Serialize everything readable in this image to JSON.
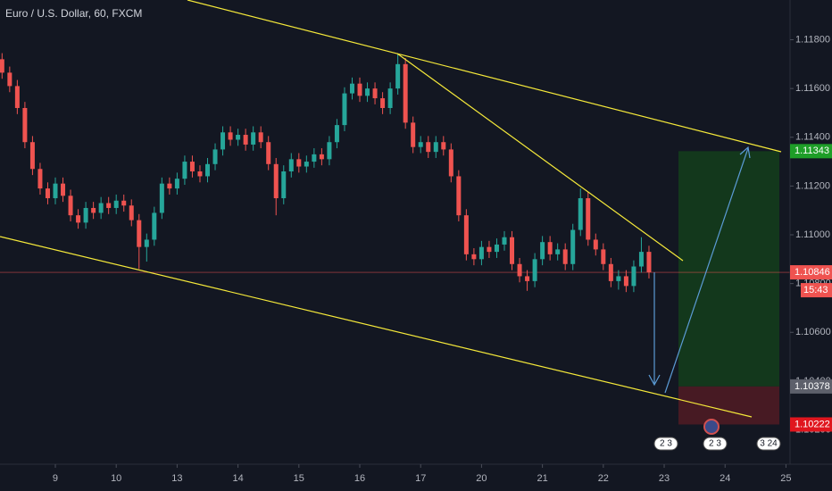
{
  "chart_data": {
    "type": "candlestick",
    "title": "Euro / U.S. Dollar, 60, FXCM",
    "x": [
      -0.875,
      -0.75,
      -0.625,
      -0.5,
      -0.375,
      -0.25,
      -0.125,
      0,
      0.125,
      0.25,
      0.375,
      0.5,
      0.625,
      0.75,
      0.875,
      1,
      1.125,
      1.25,
      1.375,
      1.5,
      1.625,
      1.75,
      1.875,
      2,
      2.125,
      2.25,
      2.375,
      2.5,
      2.625,
      2.75,
      2.875,
      3,
      3.125,
      3.25,
      3.375,
      3.5,
      3.625,
      3.75,
      3.875,
      4,
      4.125,
      4.25,
      4.375,
      4.5,
      4.625,
      4.75,
      4.875,
      5,
      5.125,
      5.25,
      5.375,
      5.5,
      5.625,
      5.75,
      5.875,
      6,
      6.125,
      6.25,
      6.375,
      6.5,
      6.625,
      6.75,
      6.875,
      7,
      7.125,
      7.25,
      7.375,
      7.5,
      7.625,
      7.75,
      7.875,
      8,
      8.125,
      8.25,
      8.375,
      8.5,
      8.625,
      8.75,
      8.875,
      9,
      9.125,
      9.25,
      9.375,
      9.5,
      9.625,
      9.75
    ],
    "open": [
      1.1172,
      1.11665,
      1.1161,
      1.1152,
      1.1138,
      1.1127,
      1.1119,
      1.1115,
      1.1121,
      1.1116,
      1.1108,
      1.1105,
      1.1111,
      1.1109,
      1.1113,
      1.1111,
      1.1114,
      1.1112,
      1.1106,
      1.1095,
      1.1098,
      1.1109,
      1.1121,
      1.1119,
      1.1123,
      1.113,
      1.1126,
      1.1124,
      1.1129,
      1.1135,
      1.1142,
      1.1139,
      1.1141,
      1.1137,
      1.1142,
      1.1138,
      1.1129,
      1.1115,
      1.1126,
      1.1131,
      1.1128,
      1.113,
      1.1133,
      1.1131,
      1.1138,
      1.1145,
      1.1158,
      1.1162,
      1.1157,
      1.116,
      1.1156,
      1.1152,
      1.116,
      1.117,
      1.1146,
      1.1136,
      1.1138,
      1.1134,
      1.1138,
      1.1135,
      1.1124,
      1.1108,
      1.1092,
      1.109,
      1.1095,
      1.1093,
      1.1096,
      1.1099,
      1.1088,
      1.1083,
      1.1081,
      1.109,
      1.1097,
      1.1092,
      1.1094,
      1.1088,
      1.1102,
      1.1115,
      1.1098,
      1.1094,
      1.1088,
      1.1081,
      1.1083,
      1.1079,
      1.1087,
      1.1093
    ],
    "high": [
      1.11745,
      1.1169,
      1.11635,
      1.11545,
      1.11405,
      1.11295,
      1.11215,
      1.11235,
      1.11235,
      1.11185,
      1.11105,
      1.11135,
      1.11135,
      1.11155,
      1.11155,
      1.11165,
      1.11165,
      1.11145,
      1.11085,
      1.11005,
      1.11115,
      1.11235,
      1.11235,
      1.11255,
      1.11325,
      1.11325,
      1.11285,
      1.11315,
      1.11375,
      1.11445,
      1.11445,
      1.11435,
      1.11435,
      1.11445,
      1.11445,
      1.11405,
      1.11315,
      1.11285,
      1.11335,
      1.11335,
      1.11325,
      1.11355,
      1.11355,
      1.11405,
      1.11475,
      1.11605,
      1.11645,
      1.11645,
      1.11625,
      1.11625,
      1.11585,
      1.11625,
      1.1174,
      1.11725,
      1.11485,
      1.11405,
      1.11405,
      1.11405,
      1.11405,
      1.11375,
      1.11265,
      1.11105,
      1.10945,
      1.10975,
      1.10975,
      1.10985,
      1.11015,
      1.11015,
      1.10905,
      1.10855,
      1.10925,
      1.10995,
      1.10995,
      1.10965,
      1.10965,
      1.11045,
      1.1119,
      1.11175,
      1.11005,
      1.10965,
      1.10905,
      1.10855,
      1.10855,
      1.10895,
      1.1099,
      1.10955
    ],
    "low": [
      1.1164,
      1.11585,
      1.11495,
      1.11355,
      1.11245,
      1.11165,
      1.11125,
      1.11125,
      1.11135,
      1.11055,
      1.11025,
      1.11025,
      1.11065,
      1.11065,
      1.11085,
      1.11085,
      1.11095,
      1.11035,
      1.1086,
      1.1089,
      1.10955,
      1.11065,
      1.11165,
      1.11165,
      1.11205,
      1.11235,
      1.11215,
      1.11215,
      1.11265,
      1.11325,
      1.11365,
      1.11365,
      1.11345,
      1.11345,
      1.11355,
      1.11265,
      1.1108,
      1.11125,
      1.11235,
      1.11255,
      1.11255,
      1.11275,
      1.11285,
      1.11285,
      1.11355,
      1.11425,
      1.11555,
      1.11545,
      1.11545,
      1.11535,
      1.11495,
      1.11495,
      1.11575,
      1.11435,
      1.11335,
      1.11335,
      1.11315,
      1.11315,
      1.11325,
      1.11215,
      1.11055,
      1.10895,
      1.10875,
      1.10875,
      1.10905,
      1.10905,
      1.10935,
      1.10855,
      1.10805,
      1.1077,
      1.10785,
      1.10875,
      1.10895,
      1.10895,
      1.10855,
      1.10855,
      1.10995,
      1.10955,
      1.10915,
      1.10855,
      1.10785,
      1.10775,
      1.10765,
      1.10765,
      1.10845,
      1.10821
    ],
    "close": [
      1.11665,
      1.1161,
      1.1152,
      1.1138,
      1.1127,
      1.1119,
      1.1115,
      1.1121,
      1.1116,
      1.1108,
      1.1105,
      1.1111,
      1.1109,
      1.1113,
      1.1111,
      1.1114,
      1.1112,
      1.1106,
      1.1095,
      1.1098,
      1.1109,
      1.1121,
      1.1119,
      1.1123,
      1.113,
      1.1126,
      1.1124,
      1.1129,
      1.1135,
      1.1142,
      1.1139,
      1.1141,
      1.1137,
      1.1142,
      1.1138,
      1.1129,
      1.1115,
      1.1126,
      1.1131,
      1.1128,
      1.113,
      1.1133,
      1.1131,
      1.1138,
      1.1145,
      1.1158,
      1.1162,
      1.1157,
      1.116,
      1.1156,
      1.1152,
      1.116,
      1.117,
      1.1146,
      1.1136,
      1.1138,
      1.1134,
      1.1138,
      1.1135,
      1.1124,
      1.1108,
      1.1092,
      1.109,
      1.1095,
      1.1093,
      1.1096,
      1.1099,
      1.1088,
      1.1083,
      1.1081,
      1.109,
      1.1097,
      1.1092,
      1.1094,
      1.1088,
      1.1102,
      1.1115,
      1.1098,
      1.1094,
      1.1088,
      1.1081,
      1.1083,
      1.1079,
      1.1087,
      1.1093,
      1.10846
    ],
    "up_color": "#26a69a",
    "down_color": "#ef5350",
    "xlim": [
      -0.909,
      12.067
    ],
    "xticks": [
      {
        "value": 0,
        "label": "9"
      },
      {
        "value": 1,
        "label": "10"
      },
      {
        "value": 2,
        "label": "13"
      },
      {
        "value": 3,
        "label": "14"
      },
      {
        "value": 4,
        "label": "15"
      },
      {
        "value": 5,
        "label": "16"
      },
      {
        "value": 6,
        "label": "17"
      },
      {
        "value": 7,
        "label": "20"
      },
      {
        "value": 8,
        "label": "21"
      },
      {
        "value": 9,
        "label": "22"
      },
      {
        "value": 10,
        "label": "23"
      },
      {
        "value": 11,
        "label": "24"
      },
      {
        "value": 12,
        "label": "25"
      }
    ],
    "ylim": [
      1.10059,
      1.11963
    ],
    "yticks": [
      {
        "value": 1.118,
        "label": "1.11800"
      },
      {
        "value": 1.116,
        "label": "1.11600"
      },
      {
        "value": 1.114,
        "label": "1.11400"
      },
      {
        "value": 1.112,
        "label": "1.11200"
      },
      {
        "value": 1.11,
        "label": "1.11000"
      },
      {
        "value": 1.108,
        "label": "1.10800"
      },
      {
        "value": 1.106,
        "label": "1.10600"
      },
      {
        "value": 1.104,
        "label": "1.10400"
      },
      {
        "value": 1.102,
        "label": "1.10200"
      }
    ],
    "grid": false,
    "last_price": 1.10846,
    "countdown": "15:43",
    "position": {
      "target": 1.11343,
      "entry": 1.10378,
      "stop": 1.10222
    },
    "events": [
      "2 3",
      "2 3",
      "3 24"
    ]
  }
}
